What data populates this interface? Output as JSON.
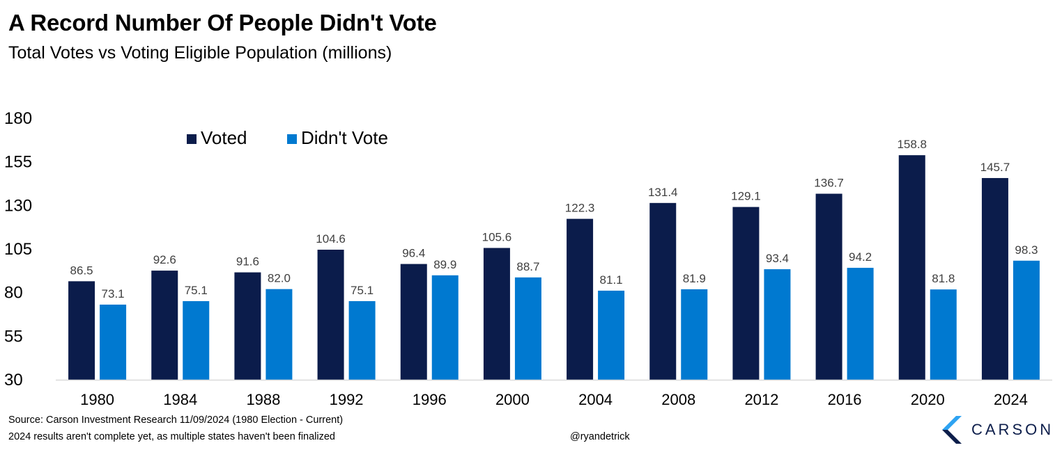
{
  "title": "A Record Number Of People Didn't Vote",
  "subtitle": "Total Votes vs Voting Eligible Population (millions)",
  "footer": {
    "source": "Source: Carson Investment Research 11/09/2024 (1980 Election - Current)",
    "note": "2024 results aren't complete yet, as multiple states haven't been finalized",
    "handle": "@ryandetrick",
    "logo_text": "CARSON"
  },
  "colors": {
    "voted": "#0b1c4b",
    "didnt_vote": "#0079d0",
    "axis": "#d9d9d9",
    "logo_light": "#2ea3f2",
    "logo_dark": "#0d1e4b"
  },
  "chart_data": {
    "type": "bar",
    "categories": [
      "1980",
      "1984",
      "1988",
      "1992",
      "1996",
      "2000",
      "2004",
      "2008",
      "2012",
      "2016",
      "2020",
      "2024"
    ],
    "series": [
      {
        "name": "Voted",
        "values": [
          86.5,
          92.6,
          91.6,
          104.6,
          96.4,
          105.6,
          122.3,
          131.4,
          129.1,
          136.7,
          158.8,
          145.7
        ]
      },
      {
        "name": "Didn't Vote",
        "values": [
          73.1,
          75.1,
          82.0,
          75.1,
          89.9,
          88.7,
          81.1,
          81.9,
          93.4,
          94.2,
          81.8,
          98.3
        ]
      }
    ],
    "yticks": [
      30,
      55,
      80,
      105,
      130,
      155,
      180
    ],
    "ylim": [
      30,
      180
    ],
    "legend_position": "top-left",
    "grid": false,
    "data_labels": true,
    "label_decimals": 1
  }
}
